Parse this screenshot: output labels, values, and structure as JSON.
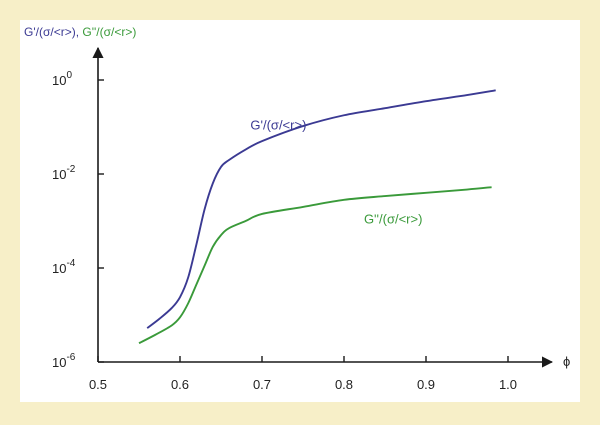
{
  "colors": {
    "background": "#f7efc8",
    "panel": "#ffffff",
    "g_prime": "#3b3a93",
    "g_double_prime": "#3a9a3a",
    "axis": "#1a1a1a"
  },
  "chart_data": {
    "type": "line",
    "ylabel_parts": [
      {
        "text": "G'/(σ/<r>)",
        "color": "#3b3a93"
      },
      {
        "text": ", ",
        "color": "#3b3a93"
      },
      {
        "text": "G''/(σ/<r>)",
        "color": "#3a9a3a"
      }
    ],
    "xlabel": "ϕ",
    "xlim": [
      0.5,
      1.0
    ],
    "ylim": [
      -6,
      1
    ],
    "yscale": "log10",
    "xticks": [
      0.5,
      0.6,
      0.7,
      0.8,
      0.9,
      1.0
    ],
    "xtick_labels": [
      "0.5",
      "0.6",
      "0.7",
      "0.8",
      "0.9",
      "1.0"
    ],
    "yticks": [
      -6,
      -4,
      -2,
      0
    ],
    "ytick_labels": [
      {
        "base": "10",
        "exp": "-6"
      },
      {
        "base": "10",
        "exp": "-4"
      },
      {
        "base": "10",
        "exp": "-2"
      },
      {
        "base": "10",
        "exp": "0"
      }
    ],
    "grid": false,
    "series": [
      {
        "name": "G'/(σ/<r>)",
        "color": "#3b3a93",
        "x": [
          0.56,
          0.575,
          0.59,
          0.6,
          0.61,
          0.62,
          0.63,
          0.64,
          0.65,
          0.66,
          0.68,
          0.7,
          0.75,
          0.8,
          0.85,
          0.9,
          0.95,
          0.985
        ],
        "y": [
          -5.28,
          -5.08,
          -4.85,
          -4.62,
          -4.2,
          -3.5,
          -2.75,
          -2.2,
          -1.85,
          -1.7,
          -1.48,
          -1.3,
          -0.98,
          -0.75,
          -0.6,
          -0.45,
          -0.32,
          -0.22
        ]
      },
      {
        "name": "G''/(σ/<r>)",
        "color": "#3a9a3a",
        "x": [
          0.55,
          0.57,
          0.59,
          0.6,
          0.61,
          0.62,
          0.63,
          0.64,
          0.65,
          0.66,
          0.68,
          0.7,
          0.75,
          0.8,
          0.85,
          0.9,
          0.95,
          0.98
        ],
        "y": [
          -5.6,
          -5.42,
          -5.22,
          -5.05,
          -4.75,
          -4.35,
          -3.95,
          -3.55,
          -3.3,
          -3.15,
          -3.0,
          -2.85,
          -2.7,
          -2.55,
          -2.47,
          -2.4,
          -2.33,
          -2.28
        ]
      }
    ],
    "annotations": [
      {
        "text": "G'/(σ/<r>)",
        "series": 0,
        "at_x": 0.72,
        "at_y": -1.05
      },
      {
        "text": "G''/(σ/<r>)",
        "series": 1,
        "at_x": 0.86,
        "at_y": -3.05
      }
    ]
  }
}
